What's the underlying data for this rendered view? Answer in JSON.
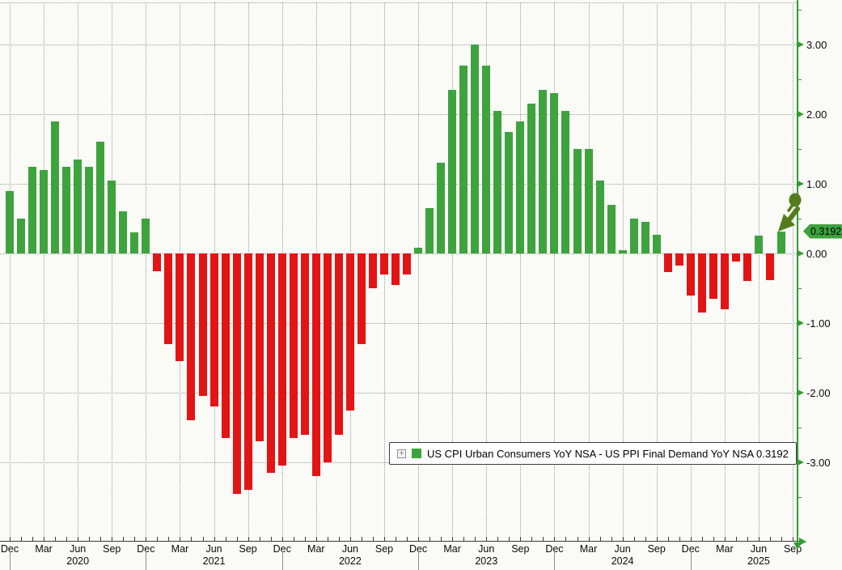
{
  "legend": {
    "expand_icon_glyph": "+",
    "swatch_color": "#3da33d",
    "label": "US CPI Urban Consumers YoY NSA - US PPI Final Demand YoY NSA 0.3192"
  },
  "badge": {
    "value": "0.3192",
    "background_color": "#3da33d"
  },
  "annotation": {
    "type": "hand-drawn-arrow",
    "color": "#537d1c",
    "points_to": "Aug 2025"
  },
  "axis": {
    "axis_color": "#2f9e2f",
    "tick_label_color": "#0a0a0a",
    "y_ticks": [
      {
        "label": "3.00",
        "value": 3
      },
      {
        "label": "2.00",
        "value": 2
      },
      {
        "label": "1.00",
        "value": 1
      },
      {
        "label": "0.00",
        "value": 0
      },
      {
        "label": "-1.00",
        "value": -1
      },
      {
        "label": "-2.00",
        "value": -2
      },
      {
        "label": "-3.00",
        "value": -3
      }
    ],
    "x_ticks": [
      {
        "label": "Dec",
        "month_index": 0
      },
      {
        "label": "Mar",
        "month_index": 3
      },
      {
        "label": "Jun",
        "month_index": 6
      },
      {
        "label": "Sep",
        "month_index": 9
      },
      {
        "label": "Dec",
        "month_index": 12
      },
      {
        "label": "Mar",
        "month_index": 15
      },
      {
        "label": "Jun",
        "month_index": 18
      },
      {
        "label": "Sep",
        "month_index": 21
      },
      {
        "label": "Dec",
        "month_index": 24
      },
      {
        "label": "Mar",
        "month_index": 27
      },
      {
        "label": "Jun",
        "month_index": 30
      },
      {
        "label": "Sep",
        "month_index": 33
      },
      {
        "label": "Dec",
        "month_index": 36
      },
      {
        "label": "Mar",
        "month_index": 39
      },
      {
        "label": "Jun",
        "month_index": 42
      },
      {
        "label": "Sep",
        "month_index": 45
      },
      {
        "label": "Dec",
        "month_index": 48
      },
      {
        "label": "Mar",
        "month_index": 51
      },
      {
        "label": "Jun",
        "month_index": 54
      },
      {
        "label": "Sep",
        "month_index": 57
      },
      {
        "label": "Dec",
        "month_index": 60
      },
      {
        "label": "Mar",
        "month_index": 63
      },
      {
        "label": "Jun",
        "month_index": 66
      },
      {
        "label": "Sep",
        "month_index": 69
      }
    ],
    "x_years": [
      {
        "label": "2020",
        "month_index": 6
      },
      {
        "label": "2021",
        "month_index": 18
      },
      {
        "label": "2022",
        "month_index": 30
      },
      {
        "label": "2023",
        "month_index": 42
      },
      {
        "label": "2024",
        "month_index": 54
      },
      {
        "label": "2025",
        "month_index": 66
      }
    ],
    "year_separator_indices": [
      0,
      12,
      24,
      36,
      48,
      60
    ]
  },
  "chart_data": {
    "type": "bar",
    "title": "",
    "series_name": "US CPI Urban Consumers YoY NSA - US PPI Final Demand YoY NSA",
    "latest_value": 0.3192,
    "ylim": [
      -4.1,
      3.6
    ],
    "grid": "dotted",
    "legend_position": "bottom-center",
    "positive_color": "#3da33d",
    "negative_color": "#e31414",
    "x": [
      "Dec 2019",
      "Jan 2020",
      "Feb 2020",
      "Mar 2020",
      "Apr 2020",
      "May 2020",
      "Jun 2020",
      "Jul 2020",
      "Aug 2020",
      "Sep 2020",
      "Oct 2020",
      "Nov 2020",
      "Dec 2020",
      "Jan 2021",
      "Feb 2021",
      "Mar 2021",
      "Apr 2021",
      "May 2021",
      "Jun 2021",
      "Jul 2021",
      "Aug 2021",
      "Sep 2021",
      "Oct 2021",
      "Nov 2021",
      "Dec 2021",
      "Jan 2022",
      "Feb 2022",
      "Mar 2022",
      "Apr 2022",
      "May 2022",
      "Jun 2022",
      "Jul 2022",
      "Aug 2022",
      "Sep 2022",
      "Oct 2022",
      "Nov 2022",
      "Dec 2022",
      "Jan 2023",
      "Feb 2023",
      "Mar 2023",
      "Apr 2023",
      "May 2023",
      "Jun 2023",
      "Jul 2023",
      "Aug 2023",
      "Sep 2023",
      "Oct 2023",
      "Nov 2023",
      "Dec 2023",
      "Jan 2024",
      "Feb 2024",
      "Mar 2024",
      "Apr 2024",
      "May 2024",
      "Jun 2024",
      "Jul 2024",
      "Aug 2024",
      "Sep 2024",
      "Oct 2024",
      "Nov 2024",
      "Dec 2024",
      "Jan 2025",
      "Feb 2025",
      "Mar 2025",
      "Apr 2025",
      "May 2025",
      "Jun 2025",
      "Jul 2025",
      "Aug 2025"
    ],
    "values": [
      0.9,
      0.5,
      1.25,
      1.2,
      1.9,
      1.25,
      1.35,
      1.25,
      1.6,
      1.05,
      0.6,
      0.3,
      0.5,
      -0.25,
      -1.3,
      -1.55,
      -2.4,
      -2.05,
      -2.2,
      -2.65,
      -3.45,
      -3.4,
      -2.7,
      -3.15,
      -3.05,
      -2.65,
      -2.6,
      -3.2,
      -3.0,
      -2.6,
      -2.25,
      -1.3,
      -0.5,
      -0.3,
      -0.45,
      -0.3,
      0.08,
      0.65,
      1.3,
      2.35,
      2.7,
      3.0,
      2.7,
      2.05,
      1.75,
      1.9,
      2.15,
      2.35,
      2.3,
      2.05,
      1.5,
      1.5,
      1.05,
      0.7,
      0.05,
      0.5,
      0.45,
      0.27,
      -0.27,
      -0.18,
      -0.6,
      -0.85,
      -0.65,
      -0.8,
      -0.12,
      -0.4,
      0.26,
      -0.38,
      0.3192
    ]
  }
}
